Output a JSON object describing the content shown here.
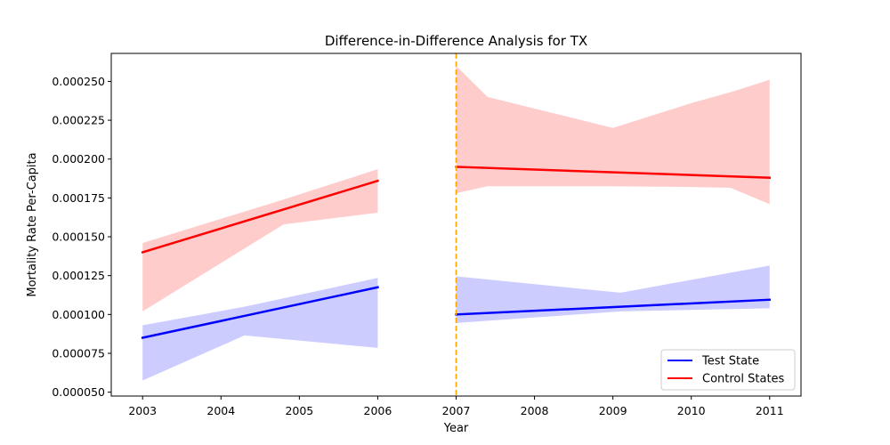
{
  "chart_data": {
    "type": "line",
    "title": "Difference-in-Difference Analysis for TX",
    "xlabel": "Year",
    "ylabel": "Mortality Rate Per-Capita",
    "xlim": [
      2002.6,
      2011.4
    ],
    "ylim": [
      4.75e-05,
      0.000268
    ],
    "x_ticks": [
      2003,
      2004,
      2005,
      2006,
      2007,
      2008,
      2009,
      2010,
      2011
    ],
    "y_ticks": [
      5e-05,
      7.5e-05,
      0.0001,
      0.000125,
      0.00015,
      0.000175,
      0.0002,
      0.000225,
      0.00025
    ],
    "y_tick_labels": [
      "0.000050",
      "0.000075",
      "0.000100",
      "0.000125",
      "0.000150",
      "0.000175",
      "0.000200",
      "0.000225",
      "0.000250"
    ],
    "intervention_x": 2007,
    "intervention_color": "#ffa500",
    "legend_position": "lower right",
    "series": [
      {
        "name": "Test State",
        "color": "#0000ff",
        "band_color": "#ccccff",
        "segments": [
          {
            "x": [
              2003,
              2006
            ],
            "y": [
              8.5e-05,
              0.0001175
            ],
            "band_x": [
              2003,
              2004.3,
              2006
            ],
            "band_upper": [
              9.3e-05,
              0.000105,
              0.0001235
            ],
            "band_lower": [
              5.75e-05,
              8.65e-05,
              7.85e-05
            ]
          },
          {
            "x": [
              2007,
              2011
            ],
            "y": [
              0.0001,
              0.0001095
            ],
            "band_x": [
              2007,
              2009.1,
              2011
            ],
            "band_upper": [
              0.0001245,
              0.000114,
              0.0001315
            ],
            "band_lower": [
              9.45e-05,
              0.000102,
              0.000104
            ]
          }
        ]
      },
      {
        "name": "Control States",
        "color": "#ff0000",
        "band_color": "#ffcccc",
        "segments": [
          {
            "x": [
              2003,
              2006
            ],
            "y": [
              0.00014,
              0.000186
            ],
            "band_x": [
              2003,
              2004.8,
              2006
            ],
            "band_upper": [
              0.000146,
              0.000174,
              0.0001935
            ],
            "band_lower": [
              0.000102,
              0.000158,
              0.0001655
            ]
          },
          {
            "x": [
              2007,
              2011
            ],
            "y": [
              0.000195,
              0.000188
            ],
            "band_x": [
              2007,
              2007.4,
              2009,
              2010,
              2010.5,
              2011
            ],
            "band_upper": [
              0.00026,
              0.00024,
              0.00022,
              0.000236,
              0.000243,
              0.000251
            ],
            "band_lower": [
              0.000178,
              0.0001825,
              0.0001825,
              0.000182,
              0.0001815,
              0.000171
            ]
          }
        ]
      }
    ]
  }
}
